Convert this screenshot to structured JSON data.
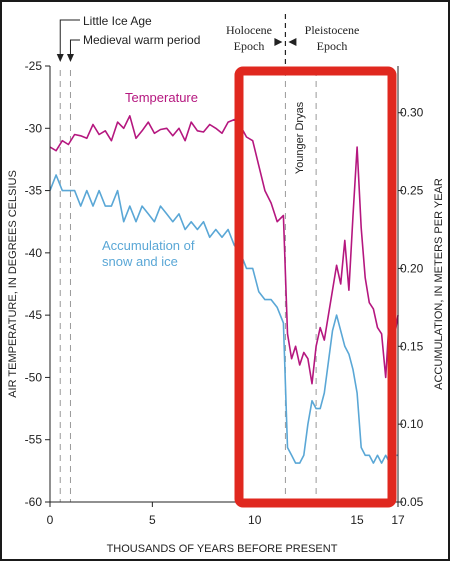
{
  "chart_data": {
    "type": "line",
    "xlabel": "THOUSANDS OF YEARS BEFORE PRESENT",
    "ylabel_left": "AIR TEMPERATURE, IN DEGREES CELSIUS",
    "ylabel_right": "ACCUMULATION, IN METERS PER YEAR",
    "xlim": [
      0,
      17
    ],
    "ylim_left": [
      -60,
      -25
    ],
    "ylim_right": [
      0.05,
      0.33
    ],
    "x_ticks": [
      0,
      5,
      10,
      15,
      17
    ],
    "y_ticks_left": [
      -25,
      -30,
      -35,
      -40,
      -45,
      -50,
      -55,
      -60
    ],
    "y_ticks_right": [
      0.3,
      0.25,
      0.2,
      0.15,
      0.1,
      0.05
    ],
    "grid": false,
    "series": [
      {
        "name": "Temperature",
        "axis": "left",
        "color": "#b5177f",
        "x": [
          0,
          0.3,
          0.6,
          0.9,
          1.2,
          1.5,
          1.8,
          2.1,
          2.4,
          2.7,
          3,
          3.3,
          3.6,
          3.9,
          4.2,
          4.5,
          4.8,
          5.1,
          5.4,
          5.7,
          6,
          6.3,
          6.6,
          6.9,
          7.2,
          7.5,
          7.8,
          8.1,
          8.4,
          8.7,
          9,
          9.3,
          9.6,
          9.9,
          10.2,
          10.5,
          10.8,
          11.1,
          11.4,
          11.6,
          11.8,
          12.0,
          12.2,
          12.4,
          12.6,
          12.8,
          13.0,
          13.2,
          13.4,
          13.6,
          13.8,
          14.0,
          14.2,
          14.4,
          14.6,
          14.8,
          15.0,
          15.2,
          15.4,
          15.6,
          15.8,
          16.0,
          16.2,
          16.4,
          16.6,
          16.8,
          17
        ],
        "values": [
          -31.5,
          -31.8,
          -31,
          -31.3,
          -30.5,
          -30.6,
          -30.8,
          -29.7,
          -30.5,
          -30.2,
          -31,
          -29.5,
          -30,
          -29,
          -30.8,
          -30.2,
          -29.5,
          -30.4,
          -30.1,
          -30,
          -30.6,
          -30,
          -31,
          -29.5,
          -30.2,
          -30.3,
          -29.7,
          -30,
          -30.4,
          -29.5,
          -29.3,
          -29.8,
          -30.7,
          -31,
          -33,
          -35,
          -36,
          -37.5,
          -37,
          -46.5,
          -48.5,
          -47.5,
          -49,
          -48,
          -48.5,
          -50.5,
          -47.5,
          -46,
          -47,
          -45,
          -43,
          -41,
          -42.5,
          -39,
          -43,
          -37,
          -31.5,
          -38,
          -42,
          -44,
          -44.5,
          -46,
          -46.5,
          -50,
          -44.5,
          -47,
          -45
        ]
      },
      {
        "name": "Accumulation of snow and ice",
        "axis": "right",
        "color": "#5aa7d6",
        "x": [
          0,
          0.3,
          0.6,
          0.9,
          1.2,
          1.5,
          1.8,
          2.1,
          2.4,
          2.7,
          3,
          3.3,
          3.6,
          3.9,
          4.2,
          4.5,
          4.8,
          5.1,
          5.4,
          5.7,
          6,
          6.3,
          6.6,
          6.9,
          7.2,
          7.5,
          7.8,
          8.1,
          8.4,
          8.7,
          9,
          9.3,
          9.6,
          9.9,
          10.2,
          10.5,
          10.8,
          11.1,
          11.4,
          11.6,
          11.8,
          12.0,
          12.2,
          12.4,
          12.6,
          12.8,
          13.0,
          13.2,
          13.4,
          13.6,
          13.8,
          14.0,
          14.2,
          14.4,
          14.6,
          14.8,
          15.0,
          15.2,
          15.4,
          15.6,
          15.8,
          16.0,
          16.2,
          16.4,
          16.6,
          16.8,
          17
        ],
        "values": [
          0.25,
          0.26,
          0.25,
          0.25,
          0.25,
          0.24,
          0.25,
          0.24,
          0.25,
          0.24,
          0.24,
          0.25,
          0.23,
          0.24,
          0.23,
          0.24,
          0.235,
          0.23,
          0.24,
          0.235,
          0.23,
          0.235,
          0.225,
          0.23,
          0.225,
          0.23,
          0.22,
          0.225,
          0.22,
          0.225,
          0.215,
          0.21,
          0.2,
          0.2,
          0.185,
          0.18,
          0.18,
          0.175,
          0.165,
          0.085,
          0.08,
          0.075,
          0.075,
          0.08,
          0.1,
          0.115,
          0.11,
          0.11,
          0.12,
          0.14,
          0.16,
          0.17,
          0.16,
          0.15,
          0.145,
          0.135,
          0.12,
          0.085,
          0.08,
          0.08,
          0.075,
          0.08,
          0.075,
          0.08,
          0.075,
          0.08,
          0.08
        ]
      }
    ],
    "annotations": {
      "series_label_temperature": "Temperature",
      "series_label_accumulation_line1": "Accumulation of",
      "series_label_accumulation_line2": "snow and ice",
      "little_ice_age": "Little Ice Age",
      "medieval_warm_period": "Medieval warm period",
      "holocene_line1": "Holocene",
      "holocene_line2": "Epoch",
      "pleistocene_line1": "Pleistocene",
      "pleistocene_line2": "Epoch",
      "younger_dryas": "Younger Dryas",
      "little_ice_age_x": 0.5,
      "medieval_warm_period_x": 1.0,
      "epoch_boundary_x": 11.5,
      "younger_dryas_start_x": 11.5,
      "younger_dryas_end_x": 13.0
    },
    "highlight_color": "#e0281f"
  }
}
